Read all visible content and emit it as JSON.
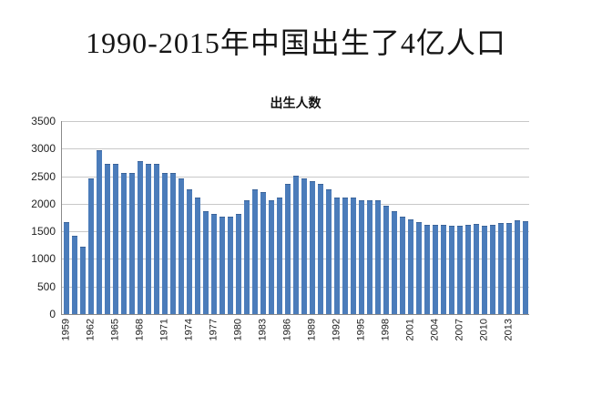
{
  "page": {
    "main_title": "1990-2015年中国出生了4亿人口"
  },
  "chart_data": {
    "type": "bar",
    "title": "出生人数",
    "xlabel": "",
    "ylabel": "",
    "ylim": [
      0,
      3500
    ],
    "ytick_step": 500,
    "grid": true,
    "legend": "none",
    "bar_color": "#4b7cba",
    "y_tick_labels": [
      "3500",
      "3000",
      "2500",
      "2000",
      "1500",
      "1000",
      "500",
      "0"
    ],
    "x_tick_labels": [
      "1959",
      "1962",
      "1965",
      "1968",
      "1971",
      "1974",
      "1977",
      "1980",
      "1983",
      "1986",
      "1989",
      "1992",
      "1995",
      "1998",
      "2001",
      "2004",
      "2007",
      "2010",
      "2013"
    ],
    "categories": [
      1959,
      1960,
      1961,
      1962,
      1963,
      1964,
      1965,
      1966,
      1967,
      1968,
      1969,
      1970,
      1971,
      1972,
      1973,
      1974,
      1975,
      1976,
      1977,
      1978,
      1979,
      1980,
      1981,
      1982,
      1983,
      1984,
      1985,
      1986,
      1987,
      1988,
      1989,
      1990,
      1991,
      1992,
      1993,
      1994,
      1995,
      1996,
      1997,
      1998,
      1999,
      2000,
      2001,
      2002,
      2003,
      2004,
      2005,
      2006,
      2007,
      2008,
      2009,
      2010,
      2011,
      2012,
      2013,
      2014,
      2015
    ],
    "values": [
      1650,
      1400,
      1200,
      2450,
      2950,
      2700,
      2700,
      2550,
      2550,
      2750,
      2700,
      2700,
      2550,
      2550,
      2450,
      2250,
      2100,
      1850,
      1800,
      1750,
      1750,
      1800,
      2050,
      2250,
      2200,
      2050,
      2100,
      2350,
      2500,
      2450,
      2400,
      2350,
      2250,
      2100,
      2100,
      2100,
      2050,
      2050,
      2050,
      1950,
      1850,
      1750,
      1700,
      1650,
      1600,
      1600,
      1600,
      1580,
      1590,
      1600,
      1610,
      1590,
      1600,
      1630,
      1640,
      1690,
      1660
    ]
  }
}
